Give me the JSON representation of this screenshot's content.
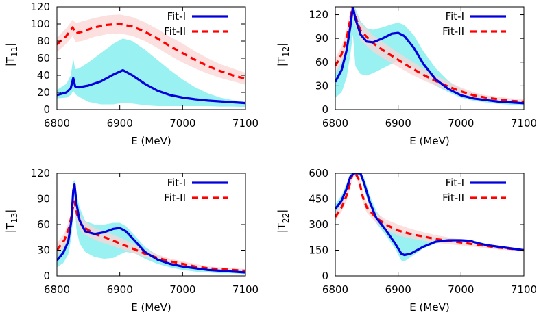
{
  "chart_data": [
    {
      "type": "line",
      "id": "T11",
      "ylabel_main": "|T",
      "ylabel_sub": "11",
      "ylabel_end": "|",
      "xlabel": "E (MeV)",
      "xlim": [
        6800,
        7100
      ],
      "ylim": [
        0,
        120
      ],
      "xticks": [
        6800,
        6900,
        7000,
        7100
      ],
      "yticks": [
        0,
        20,
        40,
        60,
        80,
        100,
        120
      ],
      "legend": [
        "Fit-I",
        "Fit-II"
      ],
      "series": [
        {
          "name": "Fit-I",
          "color": "#0000dd",
          "style": "solid",
          "x": [
            6800,
            6815,
            6822,
            6826,
            6829,
            6835,
            6850,
            6870,
            6890,
            6905,
            6920,
            6940,
            6960,
            6980,
            7000,
            7020,
            7040,
            7060,
            7080,
            7100
          ],
          "y": [
            17,
            20,
            25,
            37,
            27,
            26,
            28,
            33,
            41,
            46,
            40,
            30,
            22,
            17,
            14,
            12,
            10.5,
            9.5,
            8.5,
            7.5
          ],
          "band_upper": [
            23,
            30,
            40,
            60,
            47,
            48,
            55,
            66,
            77,
            83,
            80,
            70,
            58,
            46,
            35,
            26,
            19,
            14,
            11,
            9
          ],
          "band_lower": [
            13,
            14,
            17,
            22,
            18,
            15,
            9,
            6,
            6,
            8,
            7,
            5,
            4,
            4,
            4,
            4,
            4,
            3.5,
            3.5,
            3
          ]
        },
        {
          "name": "Fit-II",
          "color": "#ff0000",
          "style": "dashed",
          "x": [
            6800,
            6815,
            6825,
            6830,
            6840,
            6860,
            6880,
            6900,
            6920,
            6940,
            6960,
            6980,
            7000,
            7020,
            7040,
            7060,
            7080,
            7100
          ],
          "y": [
            76,
            86,
            96,
            89,
            91,
            96,
            99,
            100,
            97,
            91,
            83,
            74,
            66,
            58,
            51,
            45,
            40,
            36
          ],
          "band_upper": [
            84,
            95,
            105,
            101,
            103,
            107,
            110,
            111,
            108,
            102,
            94,
            85,
            77,
            68,
            60,
            53,
            48,
            43
          ],
          "band_lower": [
            67,
            77,
            86,
            79,
            80,
            85,
            88,
            89,
            86,
            80,
            72,
            63,
            55,
            48,
            42,
            37,
            33,
            29
          ]
        }
      ]
    },
    {
      "type": "line",
      "id": "T12",
      "ylabel_main": "|T",
      "ylabel_sub": "12",
      "ylabel_end": "|",
      "xlabel": "E (MeV)",
      "xlim": [
        6800,
        7100
      ],
      "ylim": [
        0,
        130
      ],
      "xticks": [
        6800,
        6900,
        7000,
        7100
      ],
      "yticks": [
        0,
        30,
        60,
        90,
        120
      ],
      "legend": [
        "Fit-I",
        "Fit-II"
      ],
      "series": [
        {
          "name": "Fit-I",
          "color": "#0000dd",
          "style": "solid",
          "x": [
            6800,
            6810,
            6818,
            6824,
            6828,
            6832,
            6840,
            6850,
            6860,
            6875,
            6890,
            6900,
            6910,
            6925,
            6940,
            6960,
            6980,
            7000,
            7020,
            7040,
            7060,
            7080,
            7100
          ],
          "y": [
            35,
            50,
            75,
            105,
            130,
            115,
            95,
            86,
            85,
            90,
            96,
            97,
            93,
            78,
            58,
            38,
            26,
            18,
            14,
            12,
            10,
            9,
            8
          ],
          "band_upper": [
            48,
            62,
            88,
            118,
            135,
            128,
            112,
            103,
            101,
            104,
            108,
            110,
            107,
            94,
            74,
            52,
            36,
            26,
            20,
            16,
            13,
            11,
            10
          ],
          "band_lower": [
            15,
            22,
            40,
            70,
            95,
            55,
            45,
            43,
            46,
            52,
            58,
            62,
            60,
            52,
            42,
            30,
            22,
            15,
            11,
            9,
            7,
            6,
            5
          ]
        },
        {
          "name": "Fit-II",
          "color": "#ff0000",
          "style": "dashed",
          "x": [
            6800,
            6810,
            6818,
            6824,
            6827,
            6830,
            6840,
            6860,
            6880,
            6900,
            6920,
            6940,
            6960,
            6980,
            7000,
            7020,
            7040,
            7060,
            7080,
            7100
          ],
          "y": [
            55,
            70,
            90,
            115,
            130,
            122,
            100,
            84,
            73,
            63,
            53,
            44,
            36,
            29,
            23,
            18,
            15,
            13,
            11,
            10
          ],
          "band_upper": [
            65,
            80,
            100,
            125,
            135,
            132,
            110,
            94,
            83,
            72,
            62,
            52,
            43,
            35,
            28,
            22,
            18,
            16,
            14,
            13
          ],
          "band_lower": [
            45,
            60,
            78,
            102,
            118,
            110,
            88,
            73,
            63,
            54,
            45,
            37,
            30,
            24,
            18,
            14,
            12,
            10,
            9,
            8
          ]
        }
      ]
    },
    {
      "type": "line",
      "id": "T13",
      "ylabel_main": "|T",
      "ylabel_sub": "13",
      "ylabel_end": "|",
      "xlabel": "E (MeV)",
      "xlim": [
        6800,
        7100
      ],
      "ylim": [
        0,
        120
      ],
      "xticks": [
        6800,
        6900,
        7000,
        7100
      ],
      "yticks": [
        0,
        30,
        60,
        90,
        120
      ],
      "legend": [
        "Fit-I",
        "Fit-II"
      ],
      "series": [
        {
          "name": "Fit-I",
          "color": "#0000dd",
          "style": "solid",
          "x": [
            6800,
            6810,
            6818,
            6823,
            6826,
            6828,
            6831,
            6836,
            6845,
            6860,
            6875,
            6890,
            6900,
            6910,
            6925,
            6940,
            6960,
            6980,
            7000,
            7020,
            7040,
            7060,
            7080,
            7100
          ],
          "y": [
            18,
            27,
            40,
            65,
            100,
            107,
            85,
            65,
            52,
            49,
            51,
            55,
            56,
            52,
            40,
            28,
            19,
            14,
            11,
            9,
            7,
            6,
            5,
            4
          ],
          "band_upper": [
            28,
            38,
            53,
            80,
            110,
            112,
            98,
            80,
            64,
            60,
            60,
            62,
            62,
            58,
            46,
            34,
            24,
            17,
            14,
            11,
            9,
            8,
            7,
            6
          ],
          "band_lower": [
            10,
            15,
            25,
            45,
            70,
            85,
            55,
            38,
            28,
            22,
            20,
            21,
            25,
            28,
            26,
            20,
            14,
            10,
            7,
            5,
            4,
            3,
            3,
            2
          ]
        },
        {
          "name": "Fit-II",
          "color": "#ff0000",
          "style": "dashed",
          "x": [
            6800,
            6812,
            6820,
            6825,
            6828,
            6832,
            6840,
            6860,
            6880,
            6900,
            6920,
            6940,
            6960,
            6980,
            7000,
            7020,
            7040,
            7060,
            7080,
            7100
          ],
          "y": [
            30,
            42,
            58,
            78,
            87,
            72,
            58,
            49,
            44,
            38,
            32,
            26,
            21,
            17,
            14,
            11,
            9,
            8,
            7,
            6
          ],
          "band_upper": [
            38,
            50,
            66,
            86,
            93,
            82,
            66,
            56,
            51,
            45,
            38,
            31,
            25,
            20,
            17,
            14,
            11,
            10,
            9,
            8
          ],
          "band_lower": [
            23,
            34,
            49,
            68,
            77,
            62,
            50,
            42,
            37,
            32,
            27,
            22,
            18,
            14,
            11,
            9,
            7,
            6,
            5,
            4
          ]
        }
      ]
    },
    {
      "type": "line",
      "id": "T22",
      "ylabel_main": "|T",
      "ylabel_sub": "22",
      "ylabel_end": "|",
      "xlabel": "E (MeV)",
      "xlim": [
        6800,
        7100
      ],
      "ylim": [
        0,
        600
      ],
      "xticks": [
        6800,
        6900,
        7000,
        7100
      ],
      "yticks": [
        0,
        150,
        300,
        450,
        600
      ],
      "legend": [
        "Fit-I",
        "Fit-II"
      ],
      "series": [
        {
          "name": "Fit-I",
          "color": "#0000dd",
          "style": "solid",
          "x": [
            6800,
            6810,
            6818,
            6824,
            6830,
            6840,
            6846,
            6855,
            6865,
            6880,
            6895,
            6905,
            6910,
            6920,
            6940,
            6960,
            6980,
            7000,
            7015,
            7020,
            7040,
            7060,
            7080,
            7100
          ],
          "y": [
            390,
            440,
            510,
            580,
            600,
            600,
            540,
            430,
            340,
            270,
            190,
            130,
            122,
            130,
            170,
            200,
            208,
            208,
            205,
            198,
            180,
            170,
            160,
            150
          ],
          "band_upper": [
            420,
            470,
            540,
            600,
            600,
            600,
            575,
            470,
            380,
            310,
            275,
            260,
            255,
            250,
            238,
            225,
            218,
            214,
            211,
            205,
            188,
            176,
            166,
            156
          ],
          "band_lower": [
            360,
            410,
            480,
            550,
            600,
            580,
            505,
            400,
            310,
            240,
            160,
            90,
            85,
            110,
            160,
            190,
            200,
            202,
            199,
            192,
            174,
            164,
            154,
            145
          ]
        },
        {
          "name": "Fit-II",
          "color": "#ff0000",
          "style": "dashed",
          "x": [
            6800,
            6810,
            6818,
            6824,
            6828,
            6832,
            6838,
            6843,
            6850,
            6865,
            6880,
            6900,
            6920,
            6940,
            6960,
            6980,
            7000,
            7020,
            7040,
            7060,
            7080,
            7100
          ],
          "y": [
            345,
            400,
            470,
            550,
            600,
            600,
            560,
            470,
            400,
            340,
            300,
            265,
            245,
            230,
            215,
            205,
            195,
            185,
            175,
            165,
            158,
            150
          ],
          "band_upper": [
            370,
            425,
            500,
            580,
            600,
            600,
            590,
            505,
            430,
            370,
            330,
            300,
            275,
            255,
            238,
            225,
            212,
            200,
            188,
            177,
            168,
            160
          ],
          "band_lower": [
            320,
            375,
            440,
            520,
            580,
            580,
            530,
            440,
            370,
            310,
            270,
            235,
            218,
            205,
            193,
            185,
            178,
            170,
            162,
            154,
            148,
            141
          ]
        }
      ]
    }
  ]
}
